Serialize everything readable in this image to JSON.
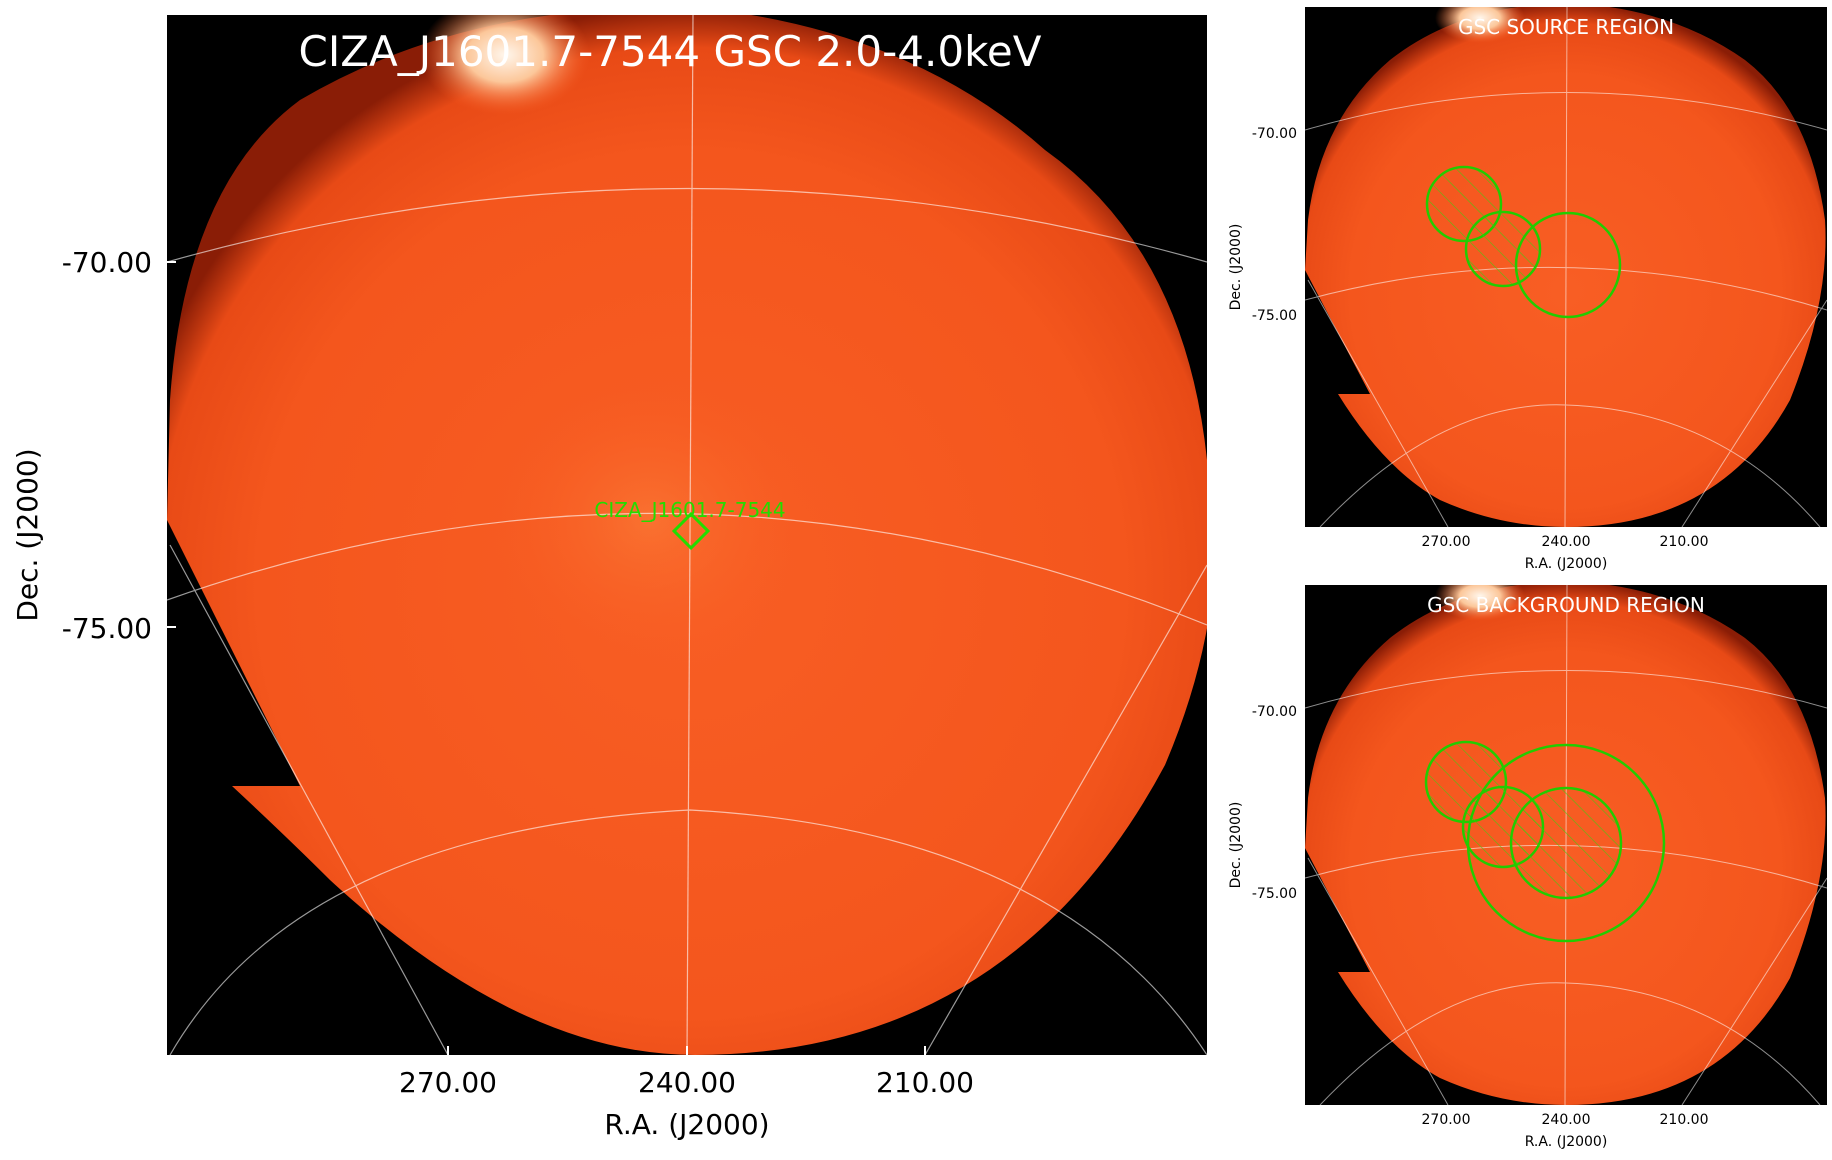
{
  "main_panel": {
    "title": "CIZA_J1601.7-7544 GSC 2.0-4.0keV",
    "ra_label": "R.A. (J2000)",
    "dec_label": "Dec. (J2000)",
    "ra_ticks": [
      "270.00",
      "240.00",
      "210.00"
    ],
    "dec_ticks": [
      "-70.00",
      "-75.00"
    ],
    "source_label": "CIZA_J1601.7-7544",
    "colors": {
      "image": "#f4541c",
      "marker": "#22dd00",
      "grid": "#ffffff",
      "background": "#000000"
    }
  },
  "source_panel": {
    "title": "GSC SOURCE REGION",
    "ra_label": "R.A. (J2000)",
    "dec_label": "Dec. (J2000)",
    "ra_ticks": [
      "270.00",
      "240.00",
      "210.00"
    ],
    "dec_ticks": [
      "-70.00",
      "-75.00"
    ]
  },
  "background_panel": {
    "title": "GSC BACKGROUND REGION",
    "ra_label": "R.A. (J2000)",
    "dec_label": "Dec. (J2000)",
    "ra_ticks": [
      "270.00",
      "240.00",
      "210.00"
    ],
    "dec_ticks": [
      "-70.00",
      "-75.00"
    ]
  }
}
